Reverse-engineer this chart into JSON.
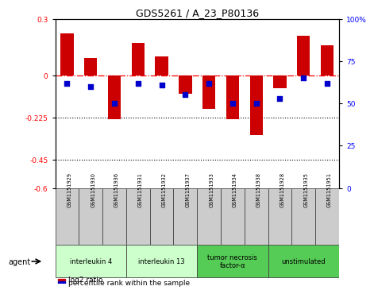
{
  "title": "GDS5261 / A_23_P80136",
  "samples": [
    "GSM1151929",
    "GSM1151930",
    "GSM1151936",
    "GSM1151931",
    "GSM1151932",
    "GSM1151937",
    "GSM1151933",
    "GSM1151934",
    "GSM1151938",
    "GSM1151928",
    "GSM1151935",
    "GSM1151951"
  ],
  "log2_ratio": [
    0.22,
    0.09,
    -0.235,
    0.17,
    0.1,
    -0.1,
    -0.18,
    -0.235,
    -0.32,
    -0.07,
    0.21,
    0.16
  ],
  "percentile": [
    62,
    60,
    50,
    62,
    61,
    55,
    62,
    50,
    50,
    53,
    65,
    62
  ],
  "ylim_left": [
    -0.6,
    0.3
  ],
  "ylim_right": [
    0,
    100
  ],
  "yticks_left": [
    0.3,
    0.0,
    -0.225,
    -0.45,
    -0.6
  ],
  "yticks_right": [
    100,
    75,
    50,
    25,
    0
  ],
  "ytick_labels_left": [
    "0.3",
    "0",
    "-0.225",
    "-0.45",
    "-0.6"
  ],
  "ytick_labels_right": [
    "100%",
    "75",
    "50",
    "25",
    "0"
  ],
  "hlines_dotted": [
    -0.225,
    -0.45
  ],
  "hline_dashdot_val": 0.0,
  "bar_color": "#cc0000",
  "dot_color": "#0000cc",
  "bar_width": 0.55,
  "dot_size": 18,
  "agent_groups": [
    {
      "label": "interleukin 4",
      "start": 0,
      "end": 3,
      "color": "#ccffcc"
    },
    {
      "label": "interleukin 13",
      "start": 3,
      "end": 6,
      "color": "#ccffcc"
    },
    {
      "label": "tumor necrosis\nfactor-α",
      "start": 6,
      "end": 9,
      "color": "#55cc55"
    },
    {
      "label": "unstimulated",
      "start": 9,
      "end": 12,
      "color": "#55cc55"
    }
  ],
  "legend_red_label": "log2 ratio",
  "legend_blue_label": "percentile rank within the sample",
  "agent_label": "agent",
  "background_color": "#ffffff",
  "sample_box_color": "#cccccc",
  "fig_width": 4.83,
  "fig_height": 3.63,
  "dpi": 100
}
